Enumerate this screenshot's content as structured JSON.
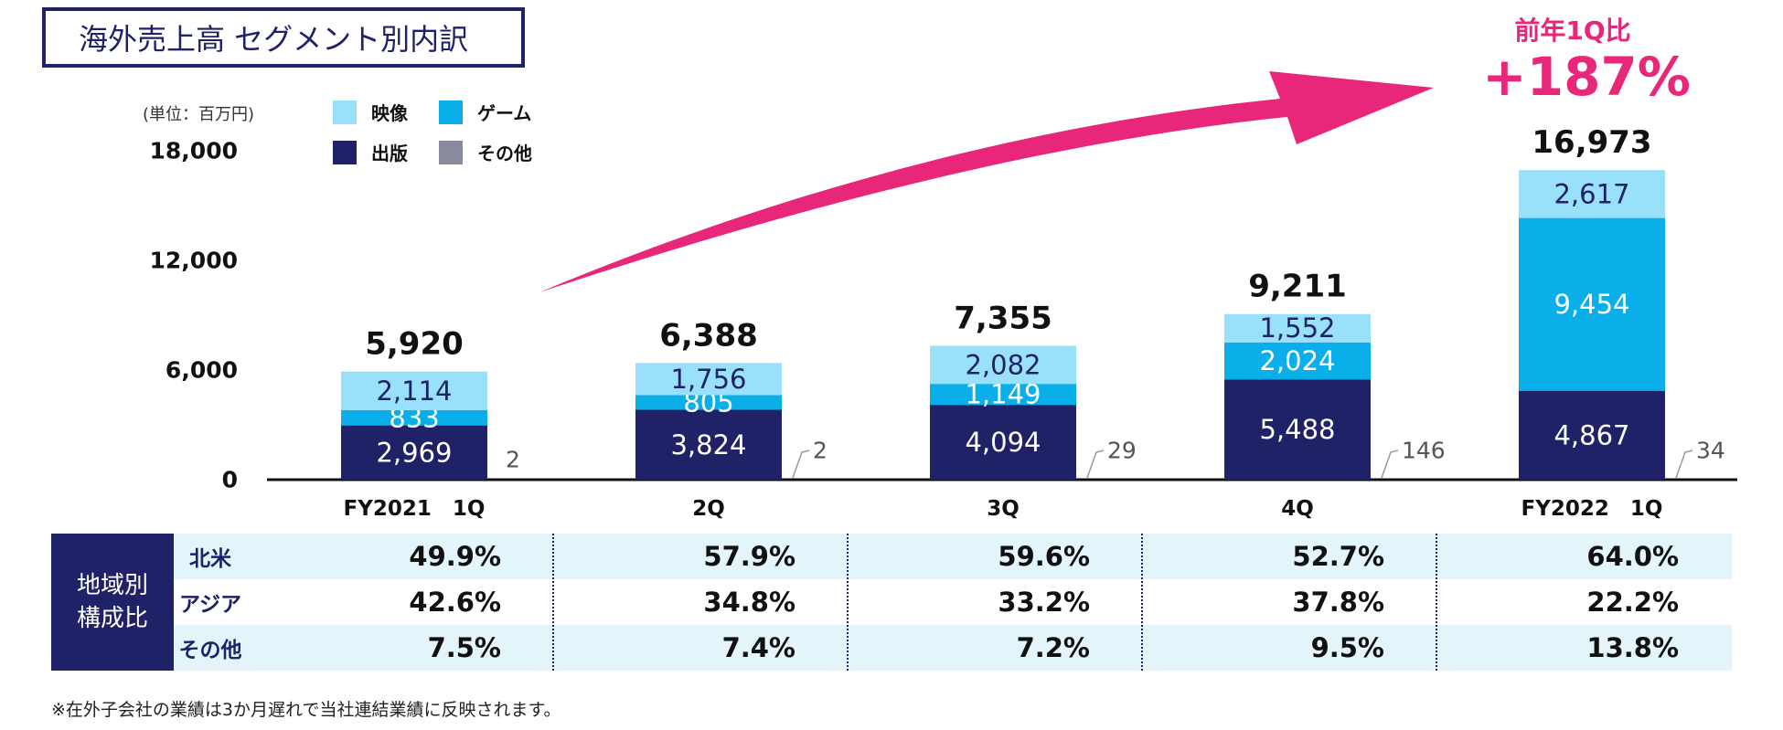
{
  "title": "海外売上高 セグメント別内訳",
  "unit": "(単位：百万円)",
  "colors": {
    "video": "#99e0fa",
    "game": "#0aaee8",
    "publishing": "#1f2266",
    "other": "#8a8a9e",
    "accent": "#e8267a"
  },
  "yoy": {
    "label": "前年1Q比",
    "value": "+187%"
  },
  "chart_data": {
    "type": "bar",
    "stacked": true,
    "title": "海外売上高 セグメント別内訳",
    "ylabel": "(単位：百万円)",
    "xlabel": "",
    "ylim": [
      0,
      18000
    ],
    "yticks": [
      {
        "value": 0,
        "label": "0"
      },
      {
        "value": 6000,
        "label": "6,000"
      },
      {
        "value": 12000,
        "label": "12,000"
      },
      {
        "value": 18000,
        "label": "18,000"
      }
    ],
    "categories": [
      "FY2021　1Q",
      "2Q",
      "3Q",
      "4Q",
      "FY2022　1Q"
    ],
    "legend": [
      "映像",
      "ゲーム",
      "出版",
      "その他"
    ],
    "series": [
      {
        "name": "出版",
        "key": "publishing",
        "values": [
          2969,
          3824,
          4094,
          5488,
          4867
        ],
        "labels": [
          "2,969",
          "3,824",
          "4,094",
          "5,488",
          "4,867"
        ]
      },
      {
        "name": "ゲーム",
        "key": "game",
        "values": [
          833,
          805,
          1149,
          2024,
          9454
        ],
        "labels": [
          "833",
          "805",
          "1,149",
          "2,024",
          "9,454"
        ]
      },
      {
        "name": "映像",
        "key": "video",
        "values": [
          2114,
          1756,
          2082,
          1552,
          2617
        ],
        "labels": [
          "2,114",
          "1,756",
          "2,082",
          "1,552",
          "2,617"
        ]
      },
      {
        "name": "その他",
        "key": "other",
        "values": [
          2,
          2,
          29,
          146,
          34
        ],
        "labels": [
          "2",
          "2",
          "29",
          "146",
          "34"
        ]
      }
    ],
    "totals": [
      5920,
      6388,
      7355,
      9211,
      16973
    ],
    "total_labels": [
      "5,920",
      "6,388",
      "7,355",
      "9,211",
      "16,973"
    ]
  },
  "region_table": {
    "header": [
      "地域別",
      "構成比"
    ],
    "rows": [
      {
        "name": "北米",
        "values": [
          "49.9%",
          "57.9%",
          "59.6%",
          "52.7%",
          "64.0%"
        ]
      },
      {
        "name": "アジア",
        "values": [
          "42.6%",
          "34.8%",
          "33.2%",
          "37.8%",
          "22.2%"
        ]
      },
      {
        "name": "その他",
        "values": [
          "7.5%",
          "7.4%",
          "7.2%",
          "9.5%",
          "13.8%"
        ]
      }
    ]
  },
  "footnote": "※在外子会社の業績は3か月遅れで当社連結業績に反映されます。"
}
